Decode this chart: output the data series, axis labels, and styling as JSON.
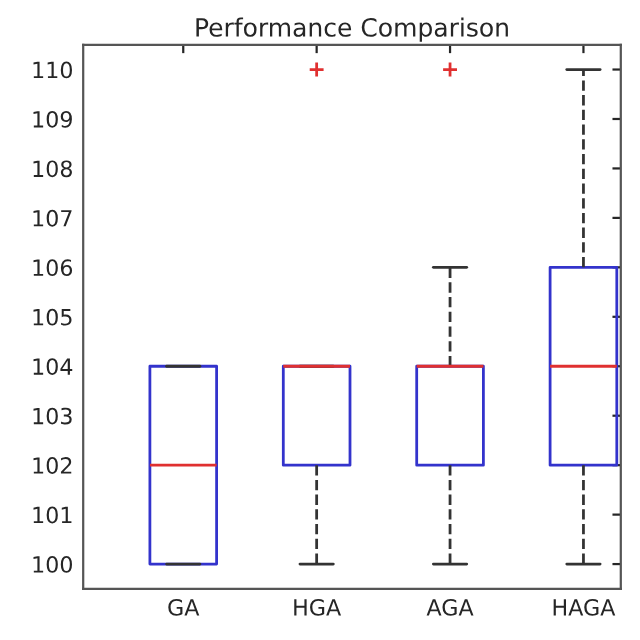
{
  "chart_data": {
    "type": "box",
    "title": "Performance Comparison",
    "categories": [
      "GA",
      "HGA",
      "AGA",
      "HAGA"
    ],
    "boxes": [
      {
        "low": 100,
        "q1": 100,
        "median": 102,
        "q3": 104,
        "high": 104
      },
      {
        "low": 100,
        "q1": 102,
        "median": 104,
        "q3": 104,
        "high": 104,
        "outliers": [
          110
        ]
      },
      {
        "low": 100,
        "q1": 102,
        "median": 104,
        "q3": 104,
        "high": 106,
        "outliers": [
          110
        ]
      },
      {
        "low": 100,
        "q1": 102,
        "median": 104,
        "q3": 106,
        "high": 110
      }
    ],
    "color": "#3333cc",
    "ylim": [
      99.5,
      110.5
    ],
    "yticks": [
      100,
      101,
      102,
      103,
      104,
      105,
      106,
      107,
      108,
      109,
      110
    ],
    "grid": false,
    "line_style": "dashed",
    "marker": "cross"
  }
}
